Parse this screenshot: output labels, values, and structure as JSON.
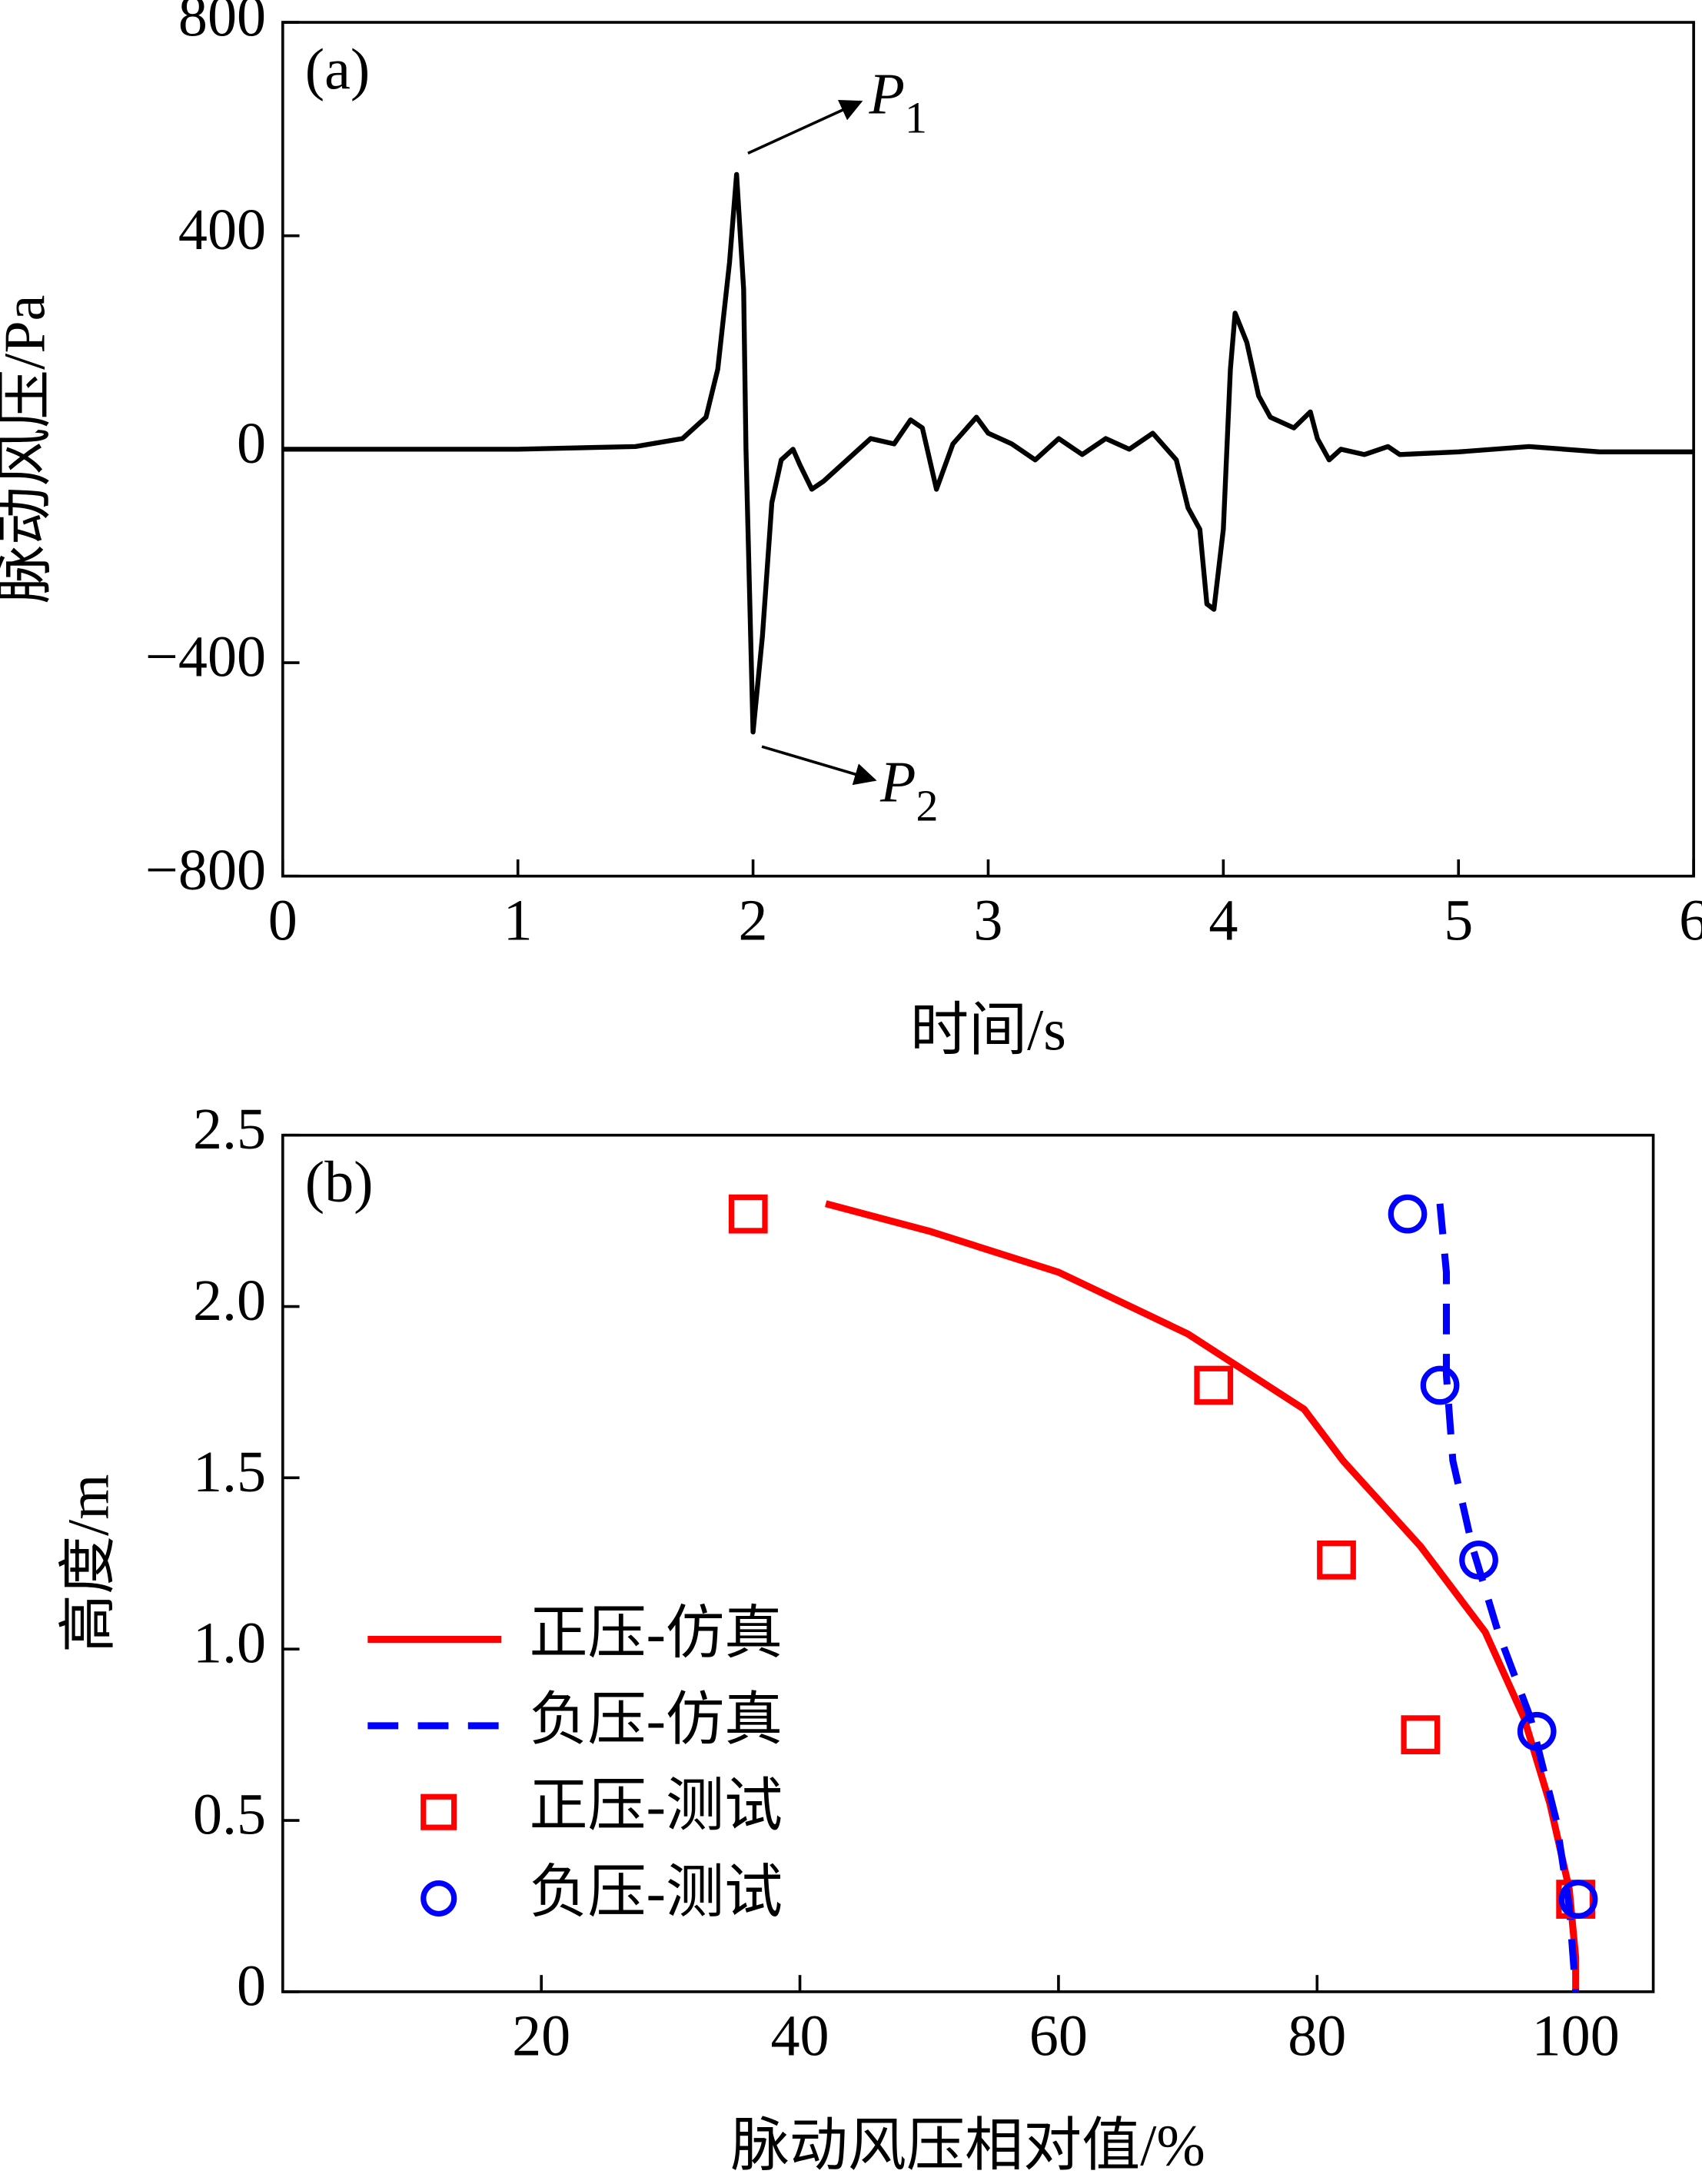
{
  "chart_data": [
    {
      "type": "line",
      "panel": "(a)",
      "xlabel": "时间/s",
      "ylabel": "脉动风压/Pa",
      "xlim": [
        0,
        6
      ],
      "ylim": [
        -800,
        800
      ],
      "xticks": [
        0,
        1,
        2,
        3,
        4,
        5,
        6
      ],
      "yticks": [
        {
          "value": -800,
          "label": "−800"
        },
        {
          "value": -400,
          "label": "−400"
        },
        0,
        400,
        800
      ],
      "annotations": [
        {
          "text": "P",
          "sub": "1"
        },
        {
          "text": "P",
          "sub": "2"
        }
      ],
      "series": [
        {
          "color": "#000000",
          "style": "line",
          "x": [
            0,
            0.5,
            1.0,
            1.5,
            1.7,
            1.8,
            1.85,
            1.9,
            1.93,
            1.96,
            1.97,
            2.0,
            2.04,
            2.08,
            2.12,
            2.17,
            2.2,
            2.25,
            2.3,
            2.4,
            2.5,
            2.6,
            2.67,
            2.72,
            2.78,
            2.85,
            2.95,
            3.0,
            3.1,
            3.2,
            3.3,
            3.4,
            3.5,
            3.6,
            3.7,
            3.8,
            3.85,
            3.9,
            3.93,
            3.96,
            4.0,
            4.03,
            4.05,
            4.1,
            4.15,
            4.2,
            4.3,
            4.37,
            4.4,
            4.45,
            4.5,
            4.6,
            4.7,
            4.75,
            5.0,
            5.3,
            5.6,
            6.0
          ],
          "values": [
            0,
            0,
            0,
            5,
            20,
            60,
            150,
            350,
            515,
            300,
            0,
            -530,
            -350,
            -100,
            -20,
            0,
            -30,
            -75,
            -60,
            -20,
            20,
            10,
            55,
            40,
            -75,
            10,
            60,
            30,
            10,
            -20,
            20,
            -10,
            20,
            0,
            30,
            -20,
            -110,
            -150,
            -290,
            -300,
            -150,
            150,
            255,
            200,
            100,
            60,
            40,
            70,
            20,
            -20,
            0,
            -10,
            5,
            -10,
            -5,
            5,
            -5,
            -5
          ]
        }
      ]
    },
    {
      "type": "line",
      "panel": "(b)",
      "xlabel": "脉动风压相对值/%",
      "ylabel": "高度/m",
      "xlim": [
        0,
        106
      ],
      "ylim": [
        0,
        2.5
      ],
      "xticks": [
        20,
        40,
        60,
        80,
        100
      ],
      "yticks": [
        0,
        0.5,
        {
          "value": 1,
          "label": "1.0"
        },
        1.5,
        {
          "value": 2,
          "label": "2.0"
        },
        2.5
      ],
      "series": [
        {
          "name": "正压-仿真",
          "color": "#ff0000",
          "style": "line",
          "x": [
            42,
            50,
            60,
            70,
            79,
            82,
            88,
            93,
            96,
            98,
            99.5,
            100,
            100
          ],
          "values": [
            2.3,
            2.22,
            2.1,
            1.92,
            1.7,
            1.55,
            1.3,
            1.05,
            0.8,
            0.55,
            0.3,
            0.1,
            0
          ]
        },
        {
          "name": "负压-仿真",
          "color": "#0000ff",
          "style": "dash",
          "x": [
            89.5,
            90,
            90,
            90.5,
            92,
            94,
            96.5,
            98.5,
            99.5,
            100
          ],
          "values": [
            2.3,
            2.1,
            1.8,
            1.55,
            1.3,
            1.05,
            0.8,
            0.5,
            0.25,
            0
          ]
        },
        {
          "name": "正压-测试",
          "color": "#ff0000",
          "style": "square",
          "x": [
            36,
            72,
            81.5,
            88,
            100
          ],
          "values": [
            2.27,
            1.77,
            1.26,
            0.75,
            0.27
          ]
        },
        {
          "name": "负压-测试",
          "color": "#0000ff",
          "style": "circle",
          "x": [
            87,
            89.5,
            92.5,
            97,
            100.2
          ],
          "values": [
            2.27,
            1.77,
            1.26,
            0.76,
            0.27
          ]
        }
      ]
    }
  ]
}
